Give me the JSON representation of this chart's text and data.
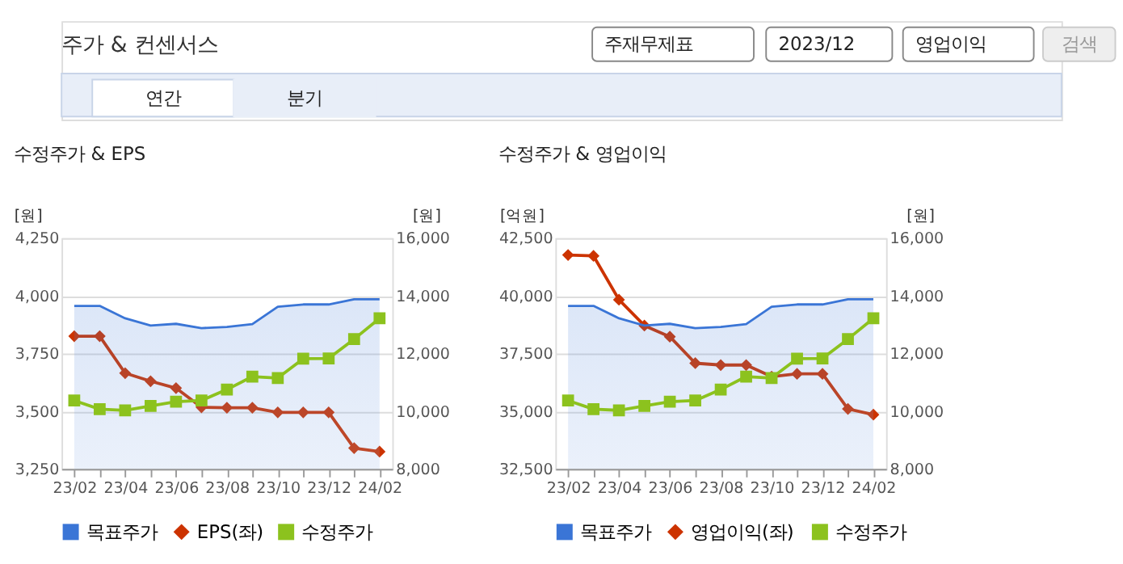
{
  "chart_data": [
    {
      "type": "other",
      "title": "주가 & 컨센서스",
      "annotations": [
        "주재무제표",
        "2023/12",
        "영업이익",
        "검색",
        "연간",
        "분기"
      ]
    },
    {
      "type": "line",
      "title": "수정주가 & EPS",
      "ylabel": "[원]",
      "y2label": "[원]",
      "categories": [
        "23/02",
        null,
        "23/04",
        null,
        "23/06",
        null,
        "23/08",
        null,
        "23/10",
        null,
        "23/12",
        null,
        "24/02"
      ],
      "series": [
        {
          "name": "목표주가",
          "type": "area",
          "axis": "y2",
          "color": "#3a75d6",
          "values": [
            13650,
            13650,
            13220,
            12970,
            13030,
            12880,
            12920,
            13020,
            13620,
            13700,
            13700,
            13880,
            13880
          ]
        },
        {
          "name": "EPS(좌)",
          "type": "line",
          "axis": "y",
          "marker": "diamond",
          "color": "#cc3300",
          "values": [
            3825,
            3825,
            3665,
            3630,
            3600,
            3517,
            3515,
            3515,
            3495,
            3495,
            3495,
            3340,
            3325
          ]
        },
        {
          "name": "수정주가",
          "type": "line",
          "axis": "y2",
          "marker": "square",
          "color": "#8cc21e",
          "values": [
            10370,
            10070,
            10030,
            10180,
            10330,
            10370,
            10750,
            11200,
            11150,
            11820,
            11830,
            12500,
            13220
          ]
        }
      ],
      "ylim": [
        3250,
        4250
      ],
      "yticks": [
        {
          "value": 3250,
          "label": "3,250"
        },
        {
          "value": 3500,
          "label": "3,500"
        },
        {
          "value": 3750,
          "label": "3,750"
        },
        {
          "value": 4000,
          "label": "4,000"
        },
        {
          "value": 4250,
          "label": "4,250"
        }
      ],
      "y2lim": [
        8000,
        16000
      ],
      "y2ticks": [
        {
          "value": 8000,
          "label": "8,000"
        },
        {
          "value": 10000,
          "label": "10,000"
        },
        {
          "value": 12000,
          "label": "12,000"
        },
        {
          "value": 14000,
          "label": "14,000"
        },
        {
          "value": 16000,
          "label": "16,000"
        }
      ],
      "grid": "y",
      "legend": "bottom"
    },
    {
      "type": "line",
      "title": "수정주가 & 영업이익",
      "ylabel": "[억원]",
      "y2label": "[원]",
      "categories": [
        "23/02",
        null,
        "23/04",
        null,
        "23/06",
        null,
        "23/08",
        null,
        "23/10",
        null,
        "23/12",
        null,
        "24/02"
      ],
      "series": [
        {
          "name": "목표주가",
          "type": "area",
          "axis": "y2",
          "color": "#3a75d6",
          "values": [
            13650,
            13650,
            13220,
            12970,
            13030,
            12880,
            12920,
            13020,
            13620,
            13700,
            13700,
            13880,
            13880
          ]
        },
        {
          "name": "영업이익(좌)",
          "type": "line",
          "axis": "y",
          "marker": "diamond",
          "color": "#cc3300",
          "values": [
            41770,
            41730,
            39830,
            38710,
            38230,
            37080,
            37000,
            37000,
            36500,
            36620,
            36620,
            35100,
            34850
          ]
        },
        {
          "name": "수정주가",
          "type": "line",
          "axis": "y2",
          "marker": "square",
          "color": "#8cc21e",
          "values": [
            10370,
            10070,
            10030,
            10180,
            10330,
            10370,
            10750,
            11200,
            11150,
            11820,
            11830,
            12500,
            13220
          ]
        }
      ],
      "ylim": [
        32500,
        42500
      ],
      "yticks": [
        {
          "value": 32500,
          "label": "32,500"
        },
        {
          "value": 35000,
          "label": "35,000"
        },
        {
          "value": 37500,
          "label": "37,500"
        },
        {
          "value": 40000,
          "label": "40,000"
        },
        {
          "value": 42500,
          "label": "42,500"
        }
      ],
      "y2lim": [
        8000,
        16000
      ],
      "y2ticks": [
        {
          "value": 8000,
          "label": "8,000"
        },
        {
          "value": 10000,
          "label": "10,000"
        },
        {
          "value": 12000,
          "label": "12,000"
        },
        {
          "value": 14000,
          "label": "14,000"
        },
        {
          "value": 16000,
          "label": "16,000"
        }
      ],
      "grid": "y",
      "legend": "bottom"
    }
  ]
}
